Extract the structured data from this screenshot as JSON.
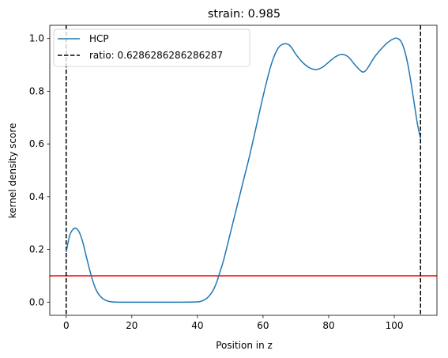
{
  "chart_data": {
    "type": "line",
    "title": "strain: 0.985",
    "xlabel": "Position in z",
    "ylabel": "kernel density score",
    "xlim": [
      -5,
      113
    ],
    "ylim": [
      -0.05,
      1.05
    ],
    "xticks": [
      0,
      20,
      40,
      60,
      80,
      100
    ],
    "yticks": [
      0.0,
      0.2,
      0.4,
      0.6,
      0.8,
      1.0
    ],
    "xtick_labels": [
      "0",
      "20",
      "40",
      "60",
      "80",
      "100"
    ],
    "ytick_labels": [
      "0.0",
      "0.2",
      "0.4",
      "0.6",
      "0.8",
      "1.0"
    ],
    "grid": false,
    "legend_position": "top-left",
    "series": [
      {
        "name": "HCP",
        "color": "#1f77b4",
        "style": "solid",
        "x": [
          0,
          1,
          2,
          3,
          4,
          5,
          6,
          7,
          8,
          9,
          10,
          11,
          12,
          13,
          14,
          16,
          20,
          25,
          30,
          35,
          40,
          41,
          42,
          43,
          44,
          45,
          46,
          47,
          48,
          50,
          52,
          54,
          56,
          58,
          60,
          62,
          63,
          64,
          65,
          66,
          67,
          68,
          69,
          70,
          72,
          74,
          76,
          78,
          80,
          82,
          84,
          86,
          88,
          90,
          91,
          92,
          94,
          96,
          98,
          100,
          101,
          102,
          103,
          104,
          105,
          106,
          107,
          108
        ],
        "y": [
          0.19,
          0.25,
          0.275,
          0.28,
          0.265,
          0.23,
          0.18,
          0.13,
          0.085,
          0.05,
          0.028,
          0.015,
          0.007,
          0.003,
          0.001,
          0.0,
          0.0,
          0.0,
          0.0,
          0.0,
          0.001,
          0.003,
          0.008,
          0.016,
          0.03,
          0.05,
          0.08,
          0.12,
          0.16,
          0.26,
          0.36,
          0.46,
          0.56,
          0.67,
          0.78,
          0.88,
          0.92,
          0.95,
          0.97,
          0.978,
          0.98,
          0.975,
          0.96,
          0.94,
          0.91,
          0.89,
          0.882,
          0.89,
          0.91,
          0.93,
          0.94,
          0.93,
          0.9,
          0.875,
          0.875,
          0.89,
          0.93,
          0.96,
          0.985,
          1.0,
          1.0,
          0.99,
          0.96,
          0.91,
          0.84,
          0.76,
          0.68,
          0.62
        ]
      }
    ],
    "vlines": [
      {
        "x": 0,
        "color": "#000000",
        "style": "dashed",
        "legend": "ratio: 0.6286286286286287"
      },
      {
        "x": 108,
        "color": "#000000",
        "style": "dashed",
        "legend": ""
      }
    ],
    "hlines": [
      {
        "y": 0.1,
        "color": "#ff0000",
        "style": "solid"
      }
    ],
    "legend": [
      {
        "label": "HCP",
        "color": "#1f77b4",
        "style": "solid"
      },
      {
        "label": "ratio: 0.6286286286286287",
        "color": "#000000",
        "style": "dashed"
      }
    ]
  }
}
